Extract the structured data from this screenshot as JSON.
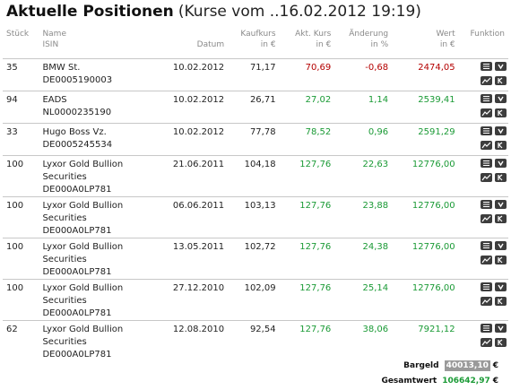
{
  "title": {
    "main": "Aktuelle Positionen",
    "sub": "(Kurse vom ..16.02.2012 19:19)"
  },
  "headers": {
    "stueck": "Stück",
    "name_1": "Name",
    "name_2": "ISIN",
    "datum": "Datum",
    "kauf_1": "Kaufkurs",
    "kauf_2": "in €",
    "akt_1": "Akt. Kurs",
    "akt_2": "in €",
    "aend_1": "Änderung",
    "aend_2": "in %",
    "wert_1": "Wert",
    "wert_2": "in €",
    "funktion": "Funktion"
  },
  "rows": [
    {
      "stueck": "35",
      "name_1": "BMW St.",
      "name_2": "DE0005190003",
      "name_3": "",
      "datum": "10.02.2012",
      "kaufkurs": "71,17",
      "akt_kurs": "70,69",
      "aenderung": "-0,68",
      "wert": "2474,05",
      "trend": "down"
    },
    {
      "stueck": "94",
      "name_1": "EADS",
      "name_2": "NL0000235190",
      "name_3": "",
      "datum": "10.02.2012",
      "kaufkurs": "26,71",
      "akt_kurs": "27,02",
      "aenderung": "1,14",
      "wert": "2539,41",
      "trend": "up"
    },
    {
      "stueck": "33",
      "name_1": "Hugo Boss Vz.",
      "name_2": "DE0005245534",
      "name_3": "",
      "datum": "10.02.2012",
      "kaufkurs": "77,78",
      "akt_kurs": "78,52",
      "aenderung": "0,96",
      "wert": "2591,29",
      "trend": "up"
    },
    {
      "stueck": "100",
      "name_1": "Lyxor Gold Bullion",
      "name_2": "Securities",
      "name_3": "DE000A0LP781",
      "datum": "21.06.2011",
      "kaufkurs": "104,18",
      "akt_kurs": "127,76",
      "aenderung": "22,63",
      "wert": "12776,00",
      "trend": "up"
    },
    {
      "stueck": "100",
      "name_1": "Lyxor Gold Bullion",
      "name_2": "Securities",
      "name_3": "DE000A0LP781",
      "datum": "06.06.2011",
      "kaufkurs": "103,13",
      "akt_kurs": "127,76",
      "aenderung": "23,88",
      "wert": "12776,00",
      "trend": "up"
    },
    {
      "stueck": "100",
      "name_1": "Lyxor Gold Bullion",
      "name_2": "Securities",
      "name_3": "DE000A0LP781",
      "datum": "13.05.2011",
      "kaufkurs": "102,72",
      "akt_kurs": "127,76",
      "aenderung": "24,38",
      "wert": "12776,00",
      "trend": "up"
    },
    {
      "stueck": "100",
      "name_1": "Lyxor Gold Bullion",
      "name_2": "Securities",
      "name_3": "DE000A0LP781",
      "datum": "27.12.2010",
      "kaufkurs": "102,09",
      "akt_kurs": "127,76",
      "aenderung": "25,14",
      "wert": "12776,00",
      "trend": "up"
    },
    {
      "stueck": "62",
      "name_1": "Lyxor Gold Bullion",
      "name_2": "Securities",
      "name_3": "DE000A0LP781",
      "datum": "12.08.2010",
      "kaufkurs": "92,54",
      "akt_kurs": "127,76",
      "aenderung": "38,06",
      "wert": "7921,12",
      "trend": "up"
    }
  ],
  "functions": [
    "details-icon",
    "sell-icon",
    "chart-icon",
    "buy-icon"
  ],
  "colors": {
    "negative": "#b40000",
    "positive": "#1a9a35",
    "icon_bg": "#3d3d3d",
    "border": "#c8c8c8"
  },
  "summary": {
    "bargeld_label": "Bargeld",
    "bargeld_value": "40013,10",
    "bargeld_currency": "€",
    "gesamt_label": "Gesamtwert",
    "gesamt_value": "106642,97",
    "gesamt_currency": "€"
  }
}
